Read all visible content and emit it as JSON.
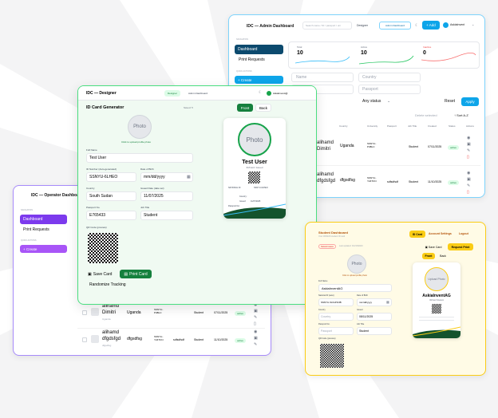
{
  "admin": {
    "title": "IDC — Admin Dashboard",
    "search_placeholder": "Search name / ID / passport / uni",
    "designer_link": "Designer",
    "admin_link": "Admin Dashboard",
    "add_label": "+ Add",
    "user": "AskiaInvent",
    "nav_section": "NAVIGATION",
    "nav": [
      "Dashboard",
      "Print Requests"
    ],
    "quick_section": "QUICK ACTIONS",
    "create_label": "+ Create",
    "stats": [
      {
        "label": "Total",
        "value": "10"
      },
      {
        "label": "Active",
        "value": "10"
      },
      {
        "label": "Inactive",
        "value": "0"
      }
    ],
    "filters": {
      "name": "Name",
      "country": "Country",
      "id": "ID",
      "passport": "Passport",
      "status": "Any status"
    },
    "reset_label": "Reset",
    "apply_label": "Apply",
    "delete_selected": "Delete selected",
    "sort_label": "↑ Sort A-Z",
    "columns": [
      "Country",
      "University",
      "Passport",
      "Job Title",
      "Created",
      "Status",
      "Actions"
    ],
    "rows": [
      {
        "name": "alihamd Dimitri",
        "country": "Uganda",
        "uni": "SSNYU-P4BLC",
        "passport": "",
        "job": "Student",
        "created": "07/11/2025",
        "status": "active"
      },
      {
        "name": "alihamd dfgdsfgd",
        "country": "dfgsdfsg",
        "uni": "SSNYU-Y24TCN",
        "passport": "sdfsdfsdf",
        "job": "Student",
        "created": "11/10/2025",
        "status": "active"
      }
    ]
  },
  "operator": {
    "title": "IDC — Operator Dashboard",
    "nav_section": "NAVIGATION",
    "nav": [
      "Dashboard",
      "Print Requests"
    ],
    "quick_section": "QUICK ACTIONS",
    "create_label": "+ Create",
    "rows": [
      {
        "name": "alihamd Dimitri",
        "sub": "Uganda",
        "country": "Uganda",
        "uni": "SSNYU-P4BLC",
        "job": "Student",
        "created": "07/11/2025",
        "status": "active"
      },
      {
        "name": "alihamd dfgdsfgd",
        "sub": "dfgsdfsg",
        "country": "dfgsdfsg",
        "uni": "SSNYU-Y24TCN",
        "passport": "sdfsdfsdf",
        "job": "Student",
        "created": "11/10/2025",
        "status": "active"
      }
    ]
  },
  "designer": {
    "title": "IDC — Designer",
    "designer_link": "Designer",
    "admin_link": "Admin Dashboard",
    "user": "AskiaInvent@",
    "generator_title": "ID Card Generator",
    "saved": "Saved: 5",
    "front_label": "Front",
    "back_label": "Back",
    "photo_label": "Photo",
    "photo_hint": "Click to upload profile photo",
    "fullname_label": "Full Name",
    "fullname": "Test User",
    "idnum_label": "ID Number (Auto-generated)",
    "idnum": "SSNYU-6LHEO",
    "dob_label": "Date of Birth",
    "dob": "mm/dd/yyyy",
    "country_label": "Country",
    "country": "South Sudan",
    "issued_label": "Issued Date (date set)",
    "issued": "11/07/2025",
    "passport_label": "Passport No.",
    "passport": "E765433",
    "job_label": "Job Title",
    "job": "Student",
    "qr_label": "QR Code (preview)",
    "save_label": "Save Card",
    "print_label": "Print Card",
    "randomize_label": "Randomize Tracking",
    "preview": {
      "photo": "Photo",
      "name": "Test User",
      "role": "ID/Card: Issued",
      "id": "SSNYU-6LHEO",
      "country_label": "Country:",
      "issued_label": "Issued:",
      "issued": "11/07/2025",
      "passport_label": "Passport No:",
      "id_label": "NATIONAL ID"
    }
  },
  "student": {
    "title": "Student Dashboard",
    "subtitle": "Your CIMSUS student ID card",
    "idcard_label": "ID Card",
    "settings_label": "Account Settings",
    "logout_label": "Logout",
    "status_badge": "Rebuild status",
    "status_hint": "Last updated: Oct/13/2023",
    "save_label": "Save Card",
    "print_label": "Request Print",
    "front_label": "Front",
    "back_label": "Back",
    "photo_label": "Photo",
    "photo_hint": "Click to upload profile photo",
    "fullname_label": "Full Name",
    "fullname": "AskiaInventAG",
    "idnum_label": "National ID (auto)",
    "idnum": "SSNYU-SCGPJIJB",
    "dob_label": "Date of Birth",
    "dob": "mm/dd/yyyy",
    "country_label": "Country",
    "country": "Country",
    "issued_label": "Issued",
    "issued": "08/11/2025",
    "passport_label": "Passport No.",
    "passport": "Passport",
    "job_label": "Job Title",
    "job": "Student",
    "qr_label": "QR Code (preview)",
    "preview": {
      "photo": "Upload Photo",
      "name": "AskiaInventAG",
      "role": "ID/Card Student"
    }
  }
}
